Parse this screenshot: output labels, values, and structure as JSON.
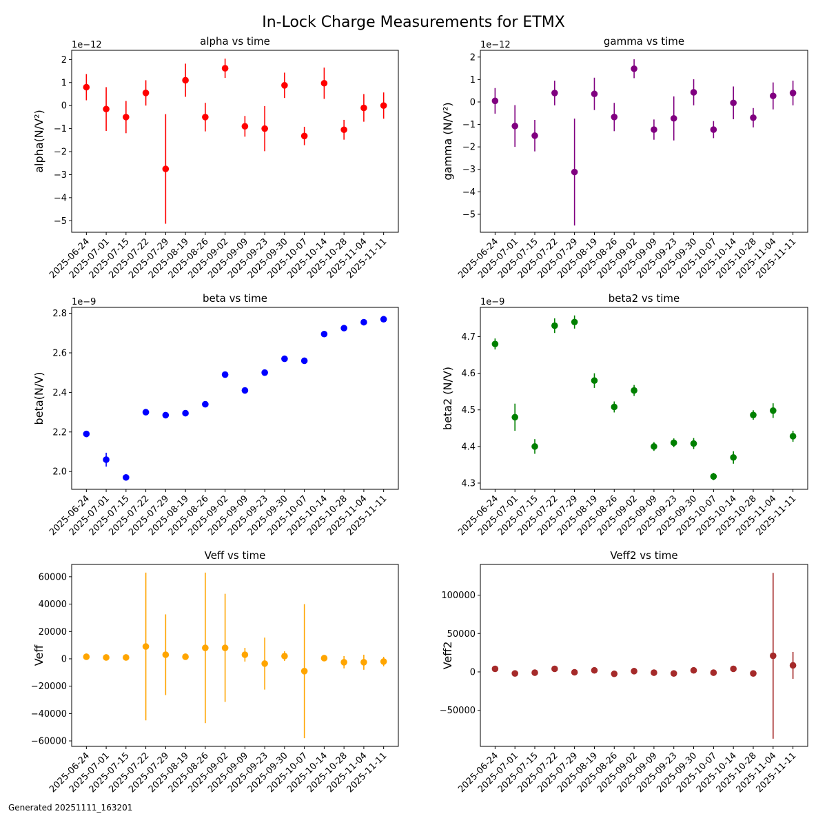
{
  "figure": {
    "title": "In-Lock Charge Measurements for ETMX",
    "footer": "Generated 20251111_163201"
  },
  "chart_data": [
    {
      "type": "scatter",
      "title": "alpha vs time",
      "ylabel": "alpha(N/V²)",
      "offset_label": "1e−12",
      "color": "#ff0000",
      "categories": [
        "2025-06-24",
        "2025-07-01",
        "2025-07-15",
        "2025-07-22",
        "2025-07-29",
        "2025-08-19",
        "2025-08-26",
        "2025-09-02",
        "2025-09-09",
        "2025-09-23",
        "2025-09-30",
        "2025-10-07",
        "2025-10-14",
        "2025-10-28",
        "2025-11-04",
        "2025-11-11"
      ],
      "yticks": [
        "2",
        "1",
        "0",
        "−1",
        "−2",
        "−3",
        "−4",
        "−5"
      ],
      "ylim": [
        -5.5,
        2.4
      ],
      "values": [
        0.8,
        -0.15,
        -0.5,
        0.55,
        -2.75,
        1.1,
        -0.5,
        1.62,
        -0.9,
        -1.0,
        0.88,
        -1.32,
        0.97,
        -1.05,
        -0.1,
        0.0
      ],
      "errors": [
        0.57,
        0.95,
        0.7,
        0.55,
        2.38,
        0.72,
        0.62,
        0.42,
        0.45,
        0.98,
        0.55,
        0.4,
        0.68,
        0.43,
        0.6,
        0.57
      ]
    },
    {
      "type": "scatter",
      "title": "gamma vs time",
      "ylabel": "gamma (N/V²)",
      "offset_label": "1e−12",
      "color": "#800080",
      "categories": [
        "2025-06-24",
        "2025-07-01",
        "2025-07-15",
        "2025-07-22",
        "2025-07-29",
        "2025-08-19",
        "2025-08-26",
        "2025-09-02",
        "2025-09-09",
        "2025-09-23",
        "2025-09-30",
        "2025-10-07",
        "2025-10-14",
        "2025-10-28",
        "2025-11-04",
        "2025-11-11"
      ],
      "yticks": [
        "2",
        "1",
        "0",
        "−1",
        "−2",
        "−3",
        "−4",
        "−5"
      ],
      "ylim": [
        -5.8,
        2.3
      ],
      "values": [
        0.05,
        -1.07,
        -1.5,
        0.4,
        -3.12,
        0.36,
        -0.67,
        1.48,
        -1.23,
        -0.73,
        0.43,
        -1.23,
        -0.04,
        -0.7,
        0.27,
        0.4
      ],
      "errors": [
        0.57,
        0.93,
        0.7,
        0.55,
        2.38,
        0.72,
        0.63,
        0.42,
        0.45,
        0.98,
        0.58,
        0.38,
        0.73,
        0.43,
        0.6,
        0.55
      ]
    },
    {
      "type": "scatter",
      "title": "beta vs time",
      "ylabel": "beta(N/V)",
      "offset_label": "1e−9",
      "color": "#0000ff",
      "categories": [
        "2025-06-24",
        "2025-07-01",
        "2025-07-15",
        "2025-07-22",
        "2025-07-29",
        "2025-08-19",
        "2025-08-26",
        "2025-09-02",
        "2025-09-09",
        "2025-09-23",
        "2025-09-30",
        "2025-10-07",
        "2025-10-14",
        "2025-10-28",
        "2025-11-04",
        "2025-11-11"
      ],
      "yticks": [
        "2.8",
        "2.6",
        "2.4",
        "2.2",
        "2.0"
      ],
      "ylim": [
        1.91,
        2.83
      ],
      "values": [
        2.19,
        2.06,
        1.97,
        2.3,
        2.285,
        2.295,
        2.34,
        2.49,
        2.41,
        2.5,
        2.57,
        2.56,
        2.695,
        2.725,
        2.755,
        2.77
      ],
      "errors": [
        0.012,
        0.035,
        0.015,
        0.012,
        0.015,
        0.015,
        0.012,
        0.01,
        0.01,
        0.01,
        0.01,
        0.01,
        0.01,
        0.01,
        0.01,
        0.01
      ]
    },
    {
      "type": "scatter",
      "title": "beta2 vs time",
      "ylabel": "beta2 (N/V)",
      "offset_label": "1e−9",
      "color": "#008000",
      "categories": [
        "2025-06-24",
        "2025-07-01",
        "2025-07-15",
        "2025-07-22",
        "2025-07-29",
        "2025-08-19",
        "2025-08-26",
        "2025-09-02",
        "2025-09-09",
        "2025-09-23",
        "2025-09-30",
        "2025-10-07",
        "2025-10-14",
        "2025-10-28",
        "2025-11-04",
        "2025-11-11"
      ],
      "yticks": [
        "4.7",
        "4.6",
        "4.5",
        "4.4",
        "4.3"
      ],
      "ylim": [
        4.283,
        4.78
      ],
      "values": [
        4.68,
        4.48,
        4.4,
        4.73,
        4.74,
        4.58,
        4.508,
        4.553,
        4.4,
        4.41,
        4.408,
        4.318,
        4.37,
        4.486,
        4.498,
        4.428
      ],
      "errors": [
        0.015,
        0.037,
        0.02,
        0.02,
        0.018,
        0.02,
        0.015,
        0.015,
        0.012,
        0.012,
        0.015,
        0.01,
        0.017,
        0.013,
        0.02,
        0.015
      ]
    },
    {
      "type": "scatter",
      "title": "Veff vs time",
      "ylabel": "Veff",
      "offset_label": "",
      "color": "#ffa500",
      "categories": [
        "2025-06-24",
        "2025-07-01",
        "2025-07-15",
        "2025-07-22",
        "2025-07-29",
        "2025-08-19",
        "2025-08-26",
        "2025-09-02",
        "2025-09-09",
        "2025-09-23",
        "2025-09-30",
        "2025-10-07",
        "2025-10-14",
        "2025-10-28",
        "2025-11-04",
        "2025-11-11"
      ],
      "yticks": [
        "60000",
        "40000",
        "20000",
        "0",
        "−20000",
        "−40000",
        "−60000"
      ],
      "ylim": [
        -64000,
        69000
      ],
      "values": [
        1500,
        1000,
        1000,
        9000,
        3000,
        1500,
        8000,
        8000,
        3000,
        -3500,
        2000,
        -9000,
        500,
        -2500,
        -2500,
        -2000
      ],
      "errors": [
        1000,
        800,
        900,
        54000,
        29500,
        1200,
        55000,
        39500,
        5000,
        19000,
        3500,
        49000,
        1000,
        4500,
        5500,
        3500
      ]
    },
    {
      "type": "scatter",
      "title": "Veff2 vs time",
      "ylabel": "Veff2",
      "offset_label": "",
      "color": "#a52a2a",
      "categories": [
        "2025-06-24",
        "2025-07-01",
        "2025-07-15",
        "2025-07-22",
        "2025-07-29",
        "2025-08-19",
        "2025-08-26",
        "2025-09-02",
        "2025-09-09",
        "2025-09-23",
        "2025-09-30",
        "2025-10-07",
        "2025-10-14",
        "2025-10-28",
        "2025-11-04",
        "2025-11-11"
      ],
      "yticks": [
        "100000",
        "50000",
        "0",
        "−50000"
      ],
      "ylim": [
        -97000,
        140000
      ],
      "values": [
        4000,
        -2000,
        -1000,
        4000,
        -500,
        2000,
        -2500,
        1000,
        -1000,
        -2000,
        2000,
        -1000,
        4000,
        -2000,
        21000,
        8500
      ],
      "errors": [
        1000,
        1000,
        1000,
        1000,
        1000,
        1000,
        1000,
        1000,
        1000,
        1000,
        1000,
        1000,
        1000,
        1000,
        108000,
        17500
      ]
    }
  ]
}
